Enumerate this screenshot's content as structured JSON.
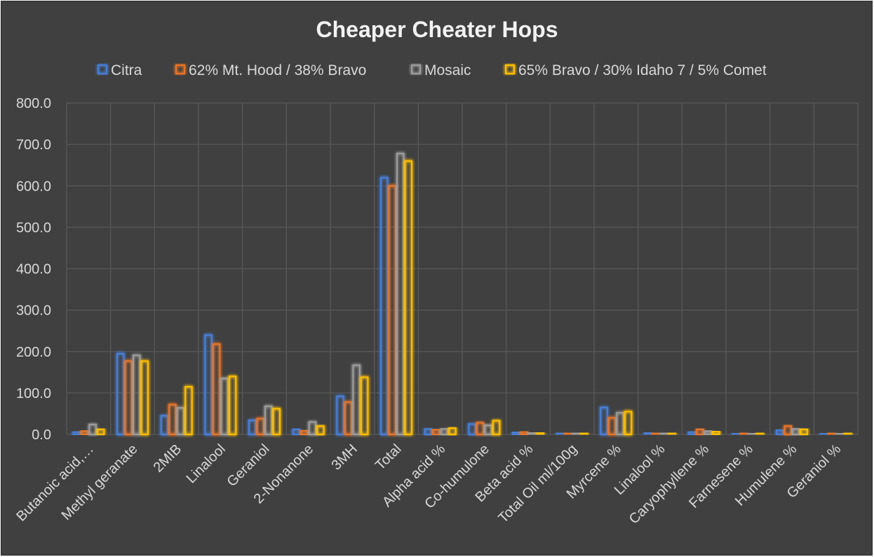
{
  "chart_data": {
    "type": "bar",
    "title": "Cheaper Cheater Hops",
    "xlabel": "",
    "ylabel": "",
    "ylim": [
      0,
      800
    ],
    "yticks": [
      "0.0",
      "100.0",
      "200.0",
      "300.0",
      "400.0",
      "500.0",
      "600.0",
      "700.0",
      "800.0"
    ],
    "grid": true,
    "legend_position": "top",
    "categories": [
      "Butanoic acid,…",
      "Methyl geranate",
      "2MIB",
      "Linalool",
      "Geraniol",
      "2-Nonanone",
      "3MH",
      "Total",
      "Alpha acid %",
      "Co-humulone",
      "Beta acid %",
      "Total Oil ml/100g",
      "Myrcene %",
      "Linalool %",
      "Caryophyllene %",
      "Farnesene %",
      "Humulene %",
      "Geraniol %"
    ],
    "series": [
      {
        "name": "Citra",
        "color": "#4a7fd6",
        "values": [
          6,
          195,
          45,
          240,
          34,
          12,
          92,
          620,
          13,
          25,
          5,
          3,
          65,
          4,
          6,
          2,
          10,
          2
        ]
      },
      {
        "name": "62% Mt. Hood / 38% Bravo",
        "color": "#e8762c",
        "values": [
          8,
          177,
          72,
          218,
          38,
          9,
          78,
          600,
          11,
          28,
          6,
          3,
          40,
          3,
          12,
          3,
          20,
          3
        ]
      },
      {
        "name": "Mosaic",
        "color": "#9d9d9d",
        "values": [
          24,
          191,
          64,
          135,
          68,
          30,
          167,
          678,
          13,
          22,
          4,
          3,
          52,
          3,
          8,
          2,
          13,
          2
        ]
      },
      {
        "name": "65% Bravo / 30% Idaho 7 / 5% Comet",
        "color": "#ffc000",
        "values": [
          12,
          177,
          115,
          140,
          62,
          20,
          138,
          660,
          15,
          33,
          4,
          3,
          55,
          3,
          7,
          3,
          12,
          3
        ]
      }
    ]
  }
}
